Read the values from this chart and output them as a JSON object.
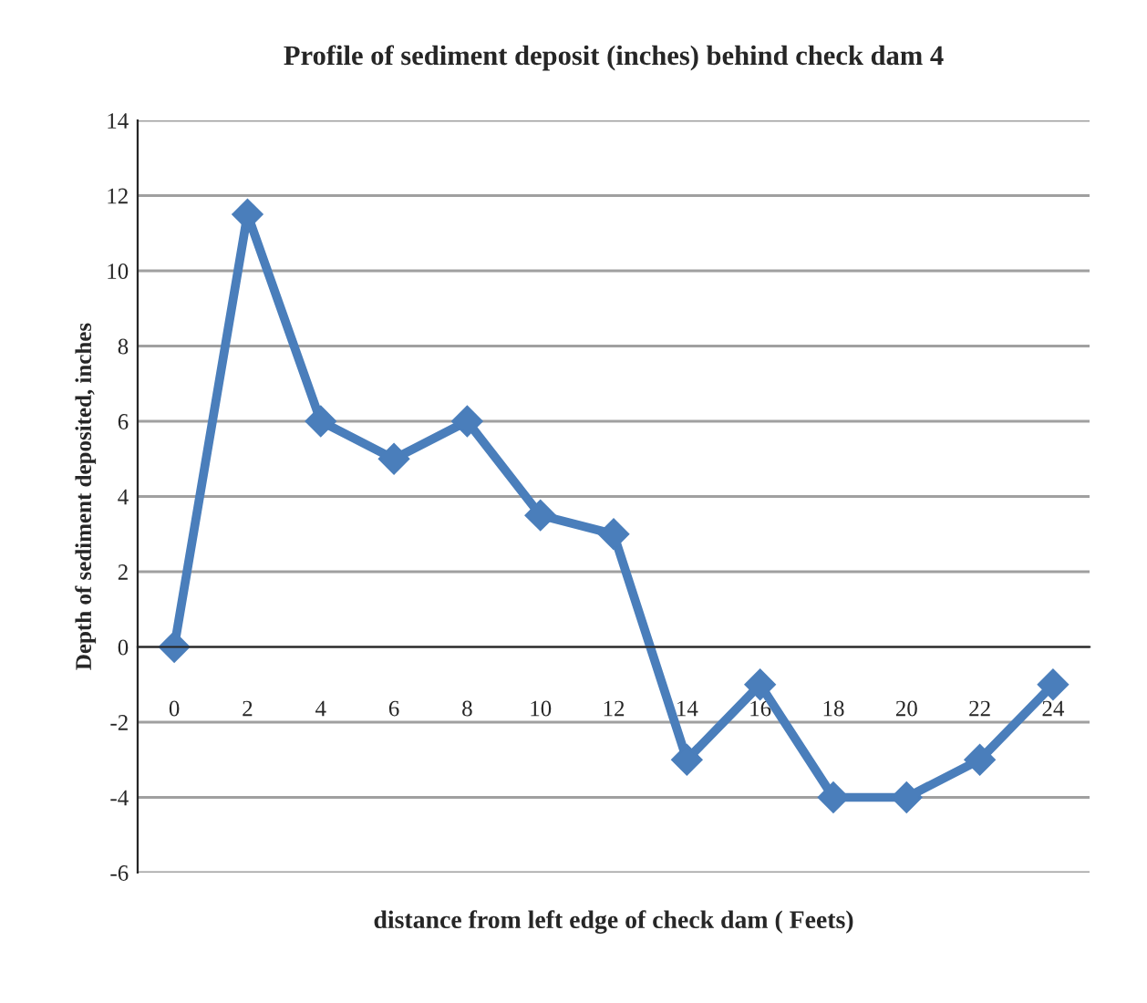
{
  "chart_data": {
    "type": "line",
    "title": "Profile of sediment deposit (inches) behind check dam 4",
    "xlabel": "distance from left edge of check dam ( Feets)",
    "ylabel": "Depth of sediment deposited, inches",
    "categories": [
      "0",
      "2",
      "4",
      "6",
      "8",
      "10",
      "12",
      "14",
      "16",
      "18",
      "20",
      "22",
      "24"
    ],
    "series": [
      {
        "color": "#4a7ebb",
        "values": [
          0,
          11.5,
          6,
          5,
          6,
          3.5,
          3,
          -3,
          -1,
          -4,
          -4,
          -3,
          -1
        ]
      }
    ],
    "ylim": [
      -6,
      14
    ],
    "yticks": [
      -6,
      -4,
      -2,
      0,
      2,
      4,
      6,
      8,
      10,
      12,
      14
    ],
    "grid": "y",
    "marker": "diamond",
    "line_style": "solid"
  }
}
